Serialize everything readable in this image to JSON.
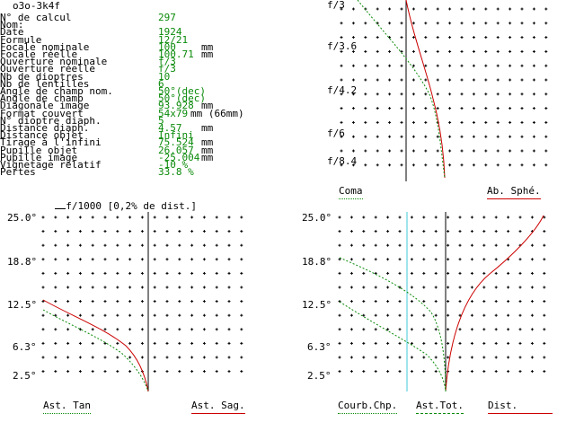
{
  "header": {
    "title": "o3o-3k4f"
  },
  "params": [
    {
      "label": "N° de calcul",
      "value": "297",
      "unit": ""
    },
    {
      "label": "Nom:",
      "value": "",
      "unit": ""
    },
    {
      "label": "Date",
      "value": "1924",
      "unit": ""
    },
    {
      "label": "Formule",
      "value": "12/21",
      "unit": ""
    },
    {
      "label": "Focale nominale",
      "value": "100",
      "unit": "mm"
    },
    {
      "label": "Focale réelle",
      "value": "100.71",
      "unit": "mm"
    },
    {
      "label": "Ouverture nominale",
      "value": "f/3",
      "unit": ""
    },
    {
      "label": "Ouverture réelle",
      "value": "f/3",
      "unit": ""
    },
    {
      "label": "Nb de dioptres",
      "value": "10",
      "unit": ""
    },
    {
      "label": "Nb de lentilles",
      "value": "6",
      "unit": ""
    },
    {
      "label": "Angle de champ nom.",
      "value": "50°(dec)",
      "unit": ""
    },
    {
      "label": "Angle de champ",
      "value": "50°(dec)",
      "unit": ""
    },
    {
      "label": "Diagonale image",
      "value": "93.928",
      "unit": "mm"
    },
    {
      "label": "Format couvert",
      "value": "54x79",
      "unit": "mm (66mm)"
    },
    {
      "label": "N° dioptre diaph.",
      "value": "5",
      "unit": ""
    },
    {
      "label": "Distance diaph.",
      "value": "4.57",
      "unit": "mm"
    },
    {
      "label": "Distance objet",
      "value": "Infini",
      "unit": ""
    },
    {
      "label": "Tirage à l'infini",
      "value": "75.524",
      "unit": "mm"
    },
    {
      "label": "Pupille objet",
      "value": "26.057",
      "unit": "mm"
    },
    {
      "label": "Pupille image",
      "value": "-25.004",
      "unit": "mm"
    },
    {
      "label": "Vignetage relatif",
      "value": "-10 %",
      "unit": ""
    },
    {
      "label": "Pertes",
      "value": "33.8 %",
      "unit": ""
    }
  ],
  "scale_note": "f/1000 [0,2% de dist.]",
  "aperture_plot": {
    "ticks": [
      "f/3",
      "f/3.6",
      "f/4.2",
      "f/6",
      "f/8.4"
    ],
    "legend_left": "Coma",
    "legend_right": "Ab. Sphé."
  },
  "astig_plot": {
    "ticks": [
      "25.0°",
      "18.8°",
      "12.5°",
      "6.3°",
      "2.5°"
    ],
    "legend_left": "Ast. Tan",
    "legend_right": "Ast. Sag."
  },
  "field_plot": {
    "ticks": [
      "25.0°",
      "18.8°",
      "12.5°",
      "6.3°",
      "2.5°"
    ],
    "legend_1": "Courb.Chp.",
    "legend_2": "Ast.Tot.",
    "legend_3": "Dist."
  },
  "colors": {
    "value_green": "#0a8a0a",
    "curve_red": "#cc0000",
    "curve_green": "#0a8a0a",
    "cyan": "#40c8d8"
  }
}
